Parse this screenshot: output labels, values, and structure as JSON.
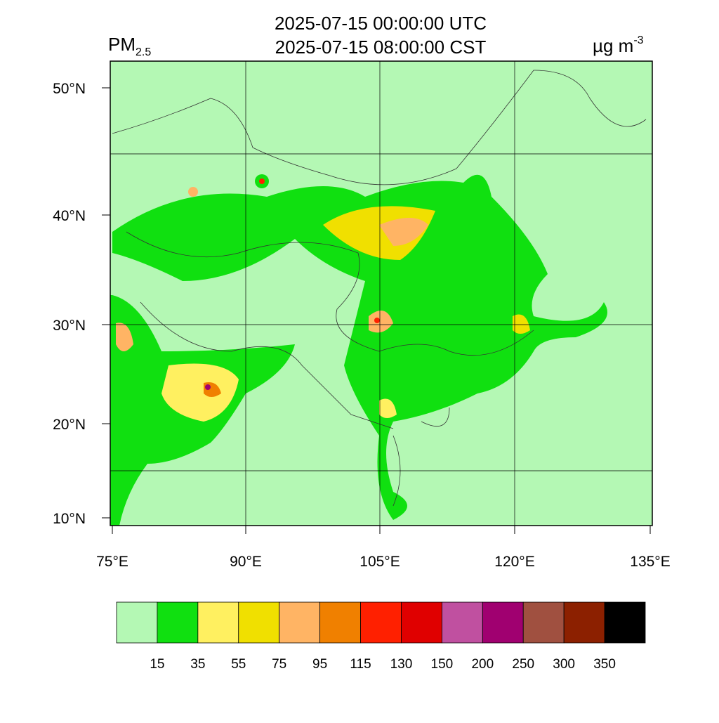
{
  "header": {
    "title_lines": [
      "2025-07-15 00:00:00 UTC",
      "2025-07-15 08:00:00 CST"
    ],
    "variable": {
      "base": "PM",
      "sub": "2.5"
    },
    "unit": {
      "base": "µg m",
      "sup": "-3"
    }
  },
  "map": {
    "lat_labels": [
      "50°N",
      "40°N",
      "30°N",
      "20°N",
      "10°N"
    ],
    "lon_labels": [
      "75°E",
      "90°E",
      "105°E",
      "120°E",
      "135°E"
    ]
  },
  "colorbar": {
    "colors": [
      "#b4f8b4",
      "#10e010",
      "#fff060",
      "#f0e000",
      "#ffb464",
      "#f08000",
      "#ff2000",
      "#e00000",
      "#c050a0",
      "#a00070",
      "#a05040",
      "#8c2000",
      "#000000"
    ],
    "levels": [
      15,
      35,
      55,
      75,
      95,
      115,
      130,
      150,
      200,
      250,
      300,
      350
    ]
  }
}
